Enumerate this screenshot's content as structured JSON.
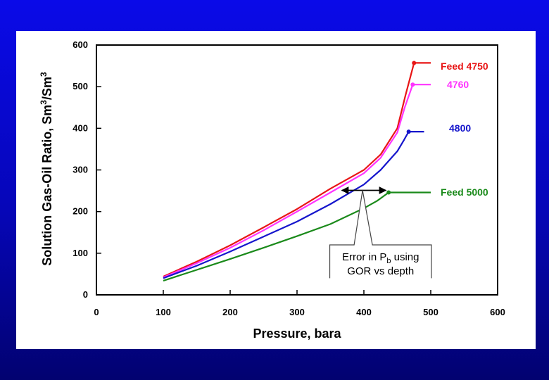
{
  "chart_data": {
    "type": "line",
    "title": "",
    "xlabel": "Pressure, bara",
    "ylabel": "Solution Gas-Oil Ratio, Sm³/Sm³",
    "ylabel_parts": {
      "main": "Solution Gas-Oil Ratio, Sm",
      "sup1": "3",
      "mid": "/Sm",
      "sup2": "3"
    },
    "xlim": [
      0,
      600
    ],
    "ylim": [
      0,
      600
    ],
    "xticks": [
      0,
      100,
      200,
      300,
      400,
      500,
      600
    ],
    "yticks": [
      0,
      100,
      200,
      300,
      400,
      500,
      600
    ],
    "grid": false,
    "series": [
      {
        "name": "Feed 4750",
        "label": "Feed 4750",
        "color": "#e81515",
        "x": [
          100,
          150,
          200,
          250,
          300,
          350,
          400,
          425,
          450,
          462,
          475,
          500
        ],
        "y": [
          44,
          80,
          119,
          162,
          206,
          255,
          300,
          337,
          400,
          478,
          557,
          557
        ],
        "bubble_point": [
          475,
          557
        ]
      },
      {
        "name": "4760",
        "label": "4760",
        "color": "#ff33ff",
        "x": [
          100,
          150,
          200,
          250,
          300,
          350,
          400,
          425,
          450,
          461,
          473,
          500
        ],
        "y": [
          42,
          76,
          113,
          155,
          200,
          246,
          292,
          329,
          390,
          450,
          505,
          505
        ],
        "bubble_point": [
          473,
          505
        ]
      },
      {
        "name": "4800",
        "label": "4800",
        "color": "#1515cc",
        "x": [
          100,
          150,
          200,
          250,
          300,
          350,
          400,
          425,
          450,
          460,
          467,
          490
        ],
        "y": [
          40,
          70,
          104,
          140,
          176,
          218,
          265,
          300,
          345,
          372,
          392,
          392
        ],
        "bubble_point": [
          467,
          392
        ]
      },
      {
        "name": "Feed 5000",
        "label": "Feed 5000",
        "color": "#1a8a1a",
        "x": [
          100,
          150,
          200,
          250,
          300,
          350,
          400,
          420,
          437,
          500
        ],
        "y": [
          34,
          60,
          86,
          113,
          141,
          170,
          208,
          226,
          246,
          246
        ],
        "bubble_point": [
          437,
          246
        ]
      }
    ],
    "annotation": {
      "text_line1": "Error in P",
      "text_sub": "b",
      "text_line1_suffix": " using",
      "text_line2": "GOR vs depth",
      "arrow_from": [
        367,
        251
      ],
      "arrow_to": [
        433,
        251
      ],
      "box_center_x": 425,
      "box_top_y": 120,
      "box_bottom_y": 40,
      "box_half_width": 76,
      "anchor_x": 398,
      "anchor_y": 251
    }
  }
}
